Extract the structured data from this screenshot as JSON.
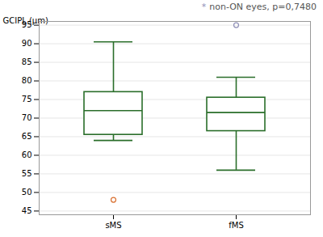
{
  "chart_data": {
    "type": "box",
    "categories": [
      "sMS",
      "fMS"
    ],
    "whisker_low": [
      64.0,
      56.0
    ],
    "q1": [
      65.5,
      66.5
    ],
    "median": [
      72.0,
      71.5
    ],
    "q3": [
      77.0,
      75.5
    ],
    "whisker_high": [
      90.5,
      81.0
    ],
    "outliers": [
      [
        48.0
      ],
      [
        95.0
      ]
    ],
    "color": "#2a6e2a",
    "colors": [
      "#d97030",
      "#9090b8"
    ],
    "ylabel": "GCIPL (μm)",
    "ylim": [
      44,
      96
    ],
    "yticks": [
      45,
      50,
      55,
      60,
      65,
      70,
      75,
      80,
      85,
      90,
      95
    ],
    "grid": true,
    "annotations": [
      {
        "text": "*",
        "color": "#9090b8"
      },
      {
        "text": "non-ON eyes, p=0,7480",
        "color": "#555555"
      }
    ]
  }
}
